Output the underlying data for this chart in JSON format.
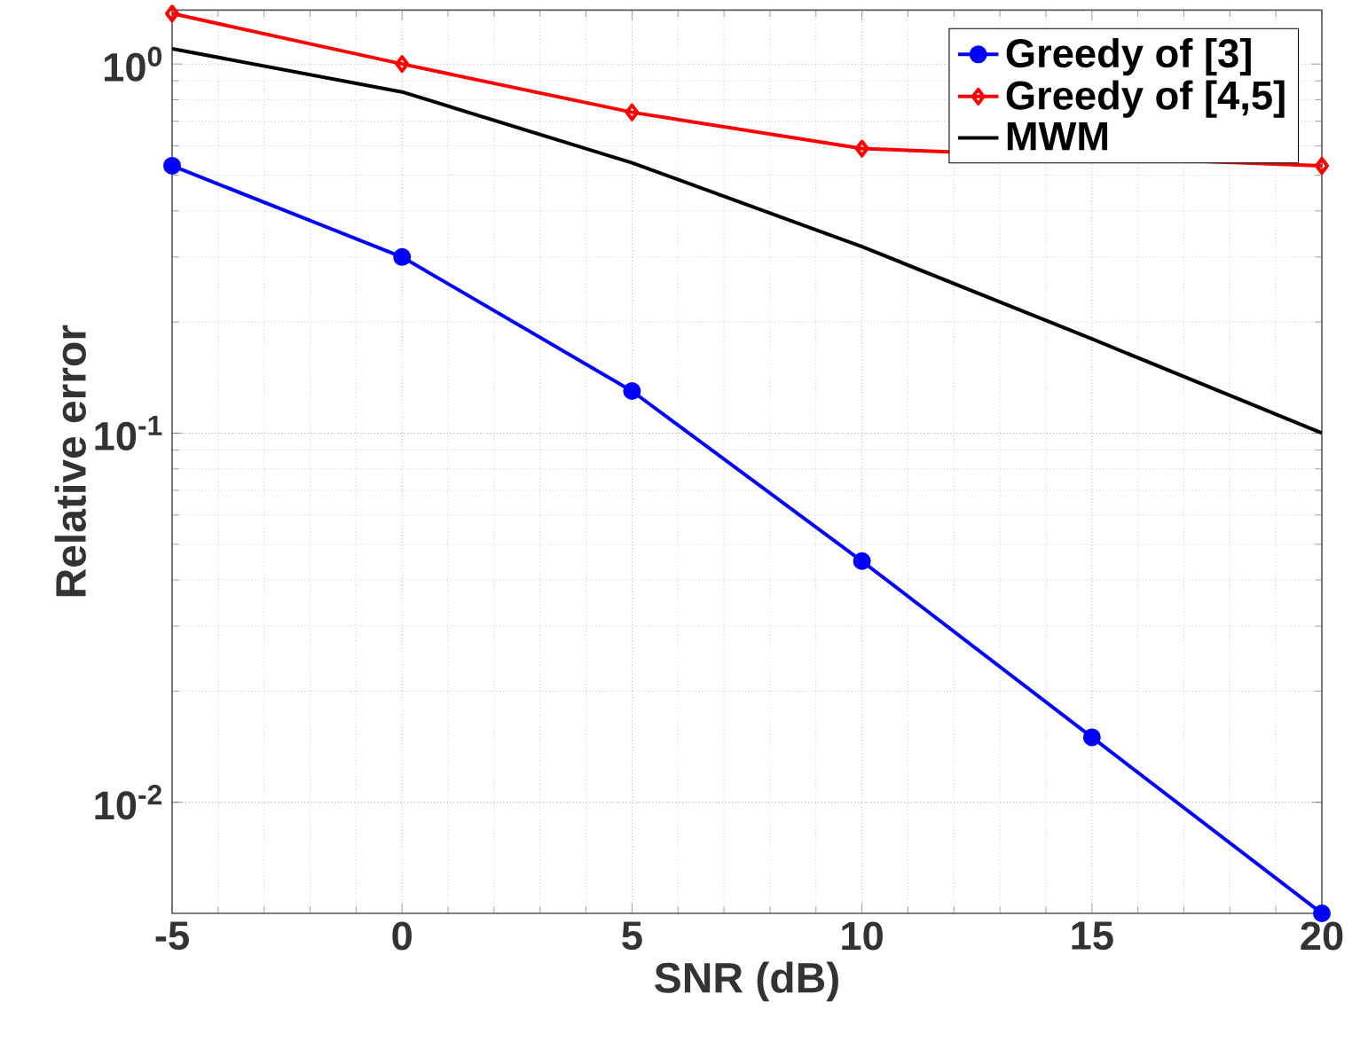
{
  "chart_data": {
    "type": "line",
    "xlabel": "SNR (dB)",
    "ylabel": "Relative error",
    "log": "y",
    "grid": true,
    "legend": "top right",
    "x": [
      -5,
      0,
      5,
      10,
      15,
      20
    ],
    "xlim": [
      -5,
      20
    ],
    "xticks": [
      -5,
      0,
      5,
      10,
      15,
      20
    ],
    "ylim": [
      0.005,
      1.4
    ],
    "yticks": [
      {
        "value": 0.01,
        "label": "10$^{-2}$"
      },
      {
        "value": 0.1,
        "label": "10$^{-1}$"
      },
      {
        "value": 1,
        "label": "10$^{0}$"
      }
    ],
    "series": [
      {
        "name": "Greedy of [3]",
        "color": "#0000ff",
        "marker": "circle",
        "values": [
          0.53,
          0.3,
          0.13,
          0.045,
          0.015,
          0.005
        ]
      },
      {
        "name": "Greedy of [4,5]",
        "color": "#ff0000",
        "marker": "diamond",
        "values": [
          1.37,
          1.0,
          0.74,
          0.59,
          null,
          0.53
        ]
      },
      {
        "name": "MWM",
        "color": "#000000",
        "marker": "none",
        "values": [
          1.1,
          0.84,
          0.54,
          0.32,
          0.18,
          0.1
        ]
      }
    ]
  }
}
